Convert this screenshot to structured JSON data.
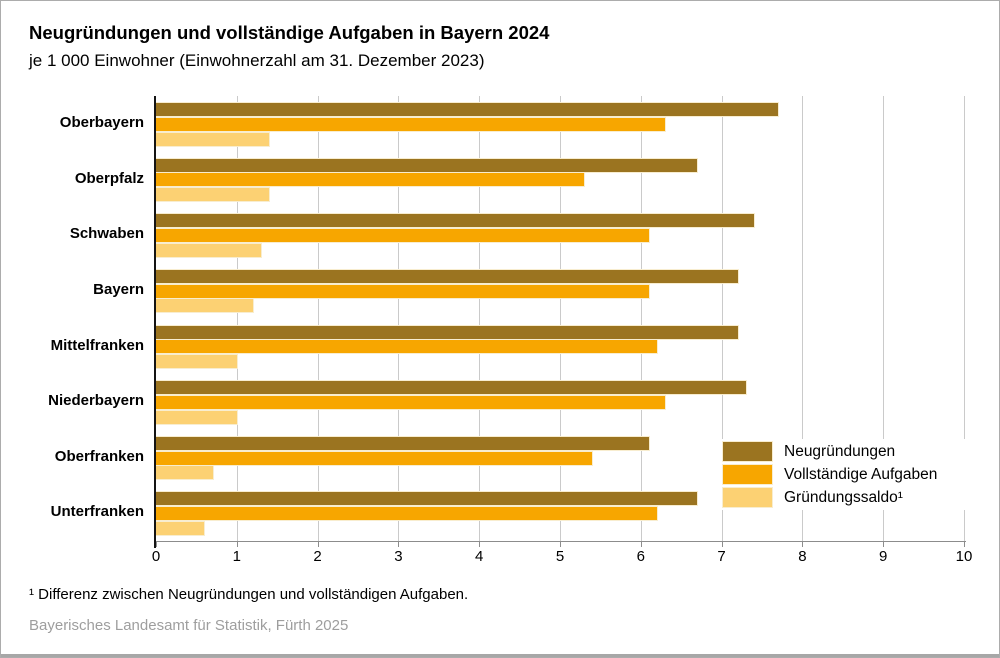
{
  "header": {
    "title": "Neugründungen und vollständige Aufgaben in Bayern 2024",
    "subtitle": "je 1 000 Einwohner (Einwohnerzahl am 31. Dezember 2023)"
  },
  "chart_data": {
    "type": "bar",
    "orientation": "horizontal",
    "title": "Neugründungen und vollständige Aufgaben in Bayern 2024",
    "subtitle": "je 1 000 Einwohner (Einwohnerzahl am 31. Dezember 2023)",
    "categories": [
      "Oberbayern",
      "Oberpfalz",
      "Schwaben",
      "Bayern",
      "Mittelfranken",
      "Niederbayern",
      "Oberfranken",
      "Unterfranken"
    ],
    "series": [
      {
        "name": "Neugründungen",
        "slug": "neugruendungen",
        "color": "#9B7420",
        "values": [
          7.7,
          6.7,
          7.4,
          7.2,
          7.2,
          7.3,
          6.1,
          6.7
        ]
      },
      {
        "name": "Vollständige Aufgaben",
        "slug": "vollstaendige-aufgaben",
        "color": "#F7A600",
        "values": [
          6.3,
          5.3,
          6.1,
          6.1,
          6.2,
          6.3,
          5.4,
          6.2
        ]
      },
      {
        "name": "Gründungssaldo¹",
        "slug": "gruendungssaldo",
        "color": "#FCD173",
        "values": [
          1.4,
          1.4,
          1.3,
          1.2,
          1.0,
          1.0,
          0.7,
          0.6
        ]
      }
    ],
    "xlim": [
      0,
      10
    ],
    "x_ticks": [
      0,
      1,
      2,
      3,
      4,
      5,
      6,
      7,
      8,
      9,
      10
    ],
    "grid": "vertical",
    "legend_position": "inside-bottom-right"
  },
  "colors": {
    "gridline": "#CACACA",
    "axis": "#141414",
    "bar_outline": "#F8EDCF",
    "source_text": "#9E9E9E",
    "frame_border": "#ACACAC"
  },
  "footnote": "¹ Differenz zwischen Neugründungen und vollständigen Aufgaben.",
  "source": "Bayerisches Landesamt für Statistik, Fürth 2025"
}
